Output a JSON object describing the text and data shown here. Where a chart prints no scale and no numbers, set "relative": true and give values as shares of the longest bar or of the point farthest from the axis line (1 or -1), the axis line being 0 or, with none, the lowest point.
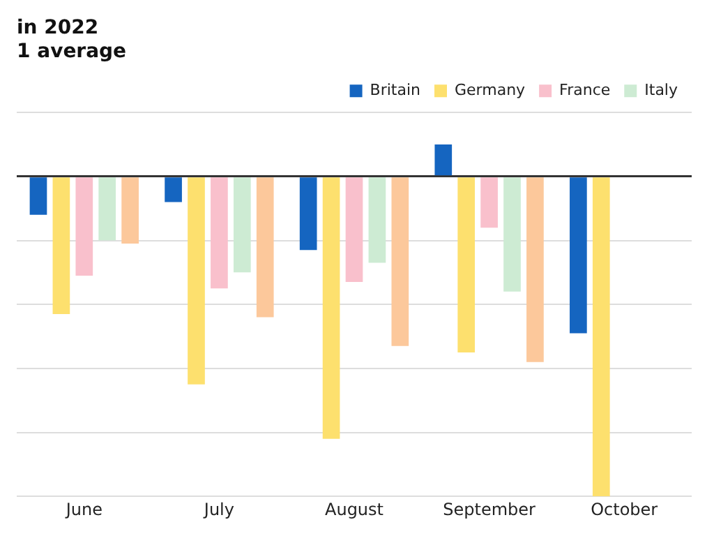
{
  "chart_data": {
    "type": "bar",
    "title": "in 2022",
    "subtitle": "1 average",
    "relative": true,
    "categories": [
      "June",
      "July",
      "August",
      "September",
      "October"
    ],
    "series": [
      {
        "name": "Britain",
        "color": "#1565c0",
        "values": [
          -0.12,
          -0.08,
          -0.23,
          0.1,
          -0.49
        ]
      },
      {
        "name": "Germany",
        "color": "#fde06e",
        "values": [
          -0.43,
          -0.65,
          -0.82,
          -0.55,
          -1
        ]
      },
      {
        "name": "France",
        "color": "#f9c0cc",
        "values": [
          -0.31,
          -0.35,
          -0.33,
          -0.16,
          null
        ]
      },
      {
        "name": "Italy",
        "color": "#cdebd3",
        "values": [
          -0.2,
          -0.3,
          -0.27,
          -0.36,
          null
        ]
      },
      {
        "color": "#fcc89b",
        "values": [
          -0.21,
          -0.44,
          -0.53,
          -0.58,
          null
        ]
      }
    ],
    "grid": "y",
    "legend": "top right"
  }
}
